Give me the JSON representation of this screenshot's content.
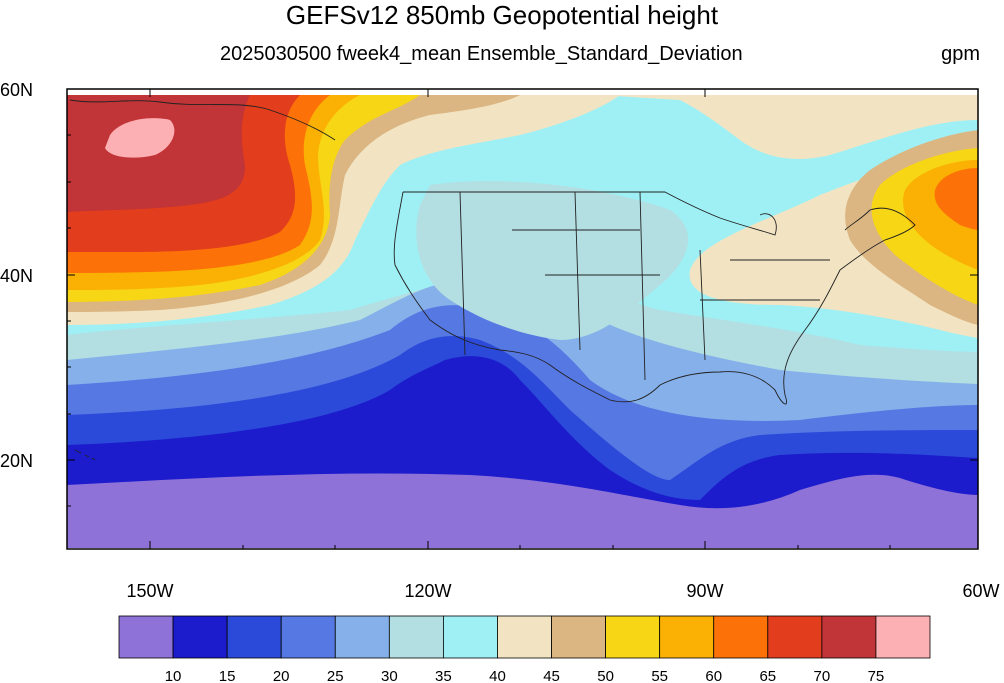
{
  "title": "GEFSv12 850mb Geopotential height",
  "subtitle": "2025030500 fweek4_mean Ensemble_Standard_Deviation",
  "units": "gpm",
  "lat_labels": [
    "60N",
    "40N",
    "20N"
  ],
  "lon_labels": [
    "150W",
    "120W",
    "90W",
    "60W"
  ],
  "colorbar": {
    "levels": [
      "10",
      "15",
      "20",
      "25",
      "30",
      "35",
      "40",
      "45",
      "50",
      "55",
      "60",
      "65",
      "70",
      "75"
    ],
    "colors": [
      "#8e72d8",
      "#1c1ccc",
      "#2b4ad9",
      "#5678e3",
      "#86b0ea",
      "#b3dee2",
      "#9ff0f5",
      "#f2e4c2",
      "#dbb683",
      "#f6d615",
      "#fbb104",
      "#fd7208",
      "#e23d1c",
      "#c13437",
      "#fdb0b3"
    ]
  },
  "map": {
    "lon_range": [
      "160W",
      "60W"
    ],
    "lat_range": [
      "10N",
      "60N"
    ],
    "field": "850mb geopotential height ensemble standard deviation"
  }
}
